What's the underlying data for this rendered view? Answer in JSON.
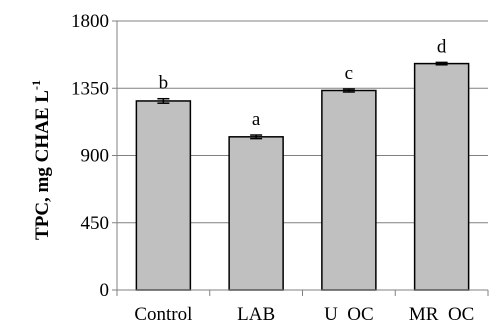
{
  "chart_data": {
    "type": "bar",
    "categories": [
      "Control",
      "LAB",
      "U  OC",
      "MR  OC"
    ],
    "values": [
      1265,
      1025,
      1335,
      1515
    ],
    "errors": [
      15,
      12,
      10,
      8
    ],
    "significance": [
      "b",
      "a",
      "c",
      "d"
    ],
    "ylabel": "TPC, mg CHAE L",
    "ylabel_superscript": "-1",
    "ylim": [
      0,
      1800
    ],
    "yticks": [
      "0",
      "450",
      "900",
      "1350",
      "1800"
    ],
    "ytick_values": [
      0,
      450,
      900,
      1350,
      1800
    ],
    "grid": true,
    "bar_color": "#c0c0c0",
    "bar_edge_color": "#000000",
    "grid_color": "#808080"
  }
}
